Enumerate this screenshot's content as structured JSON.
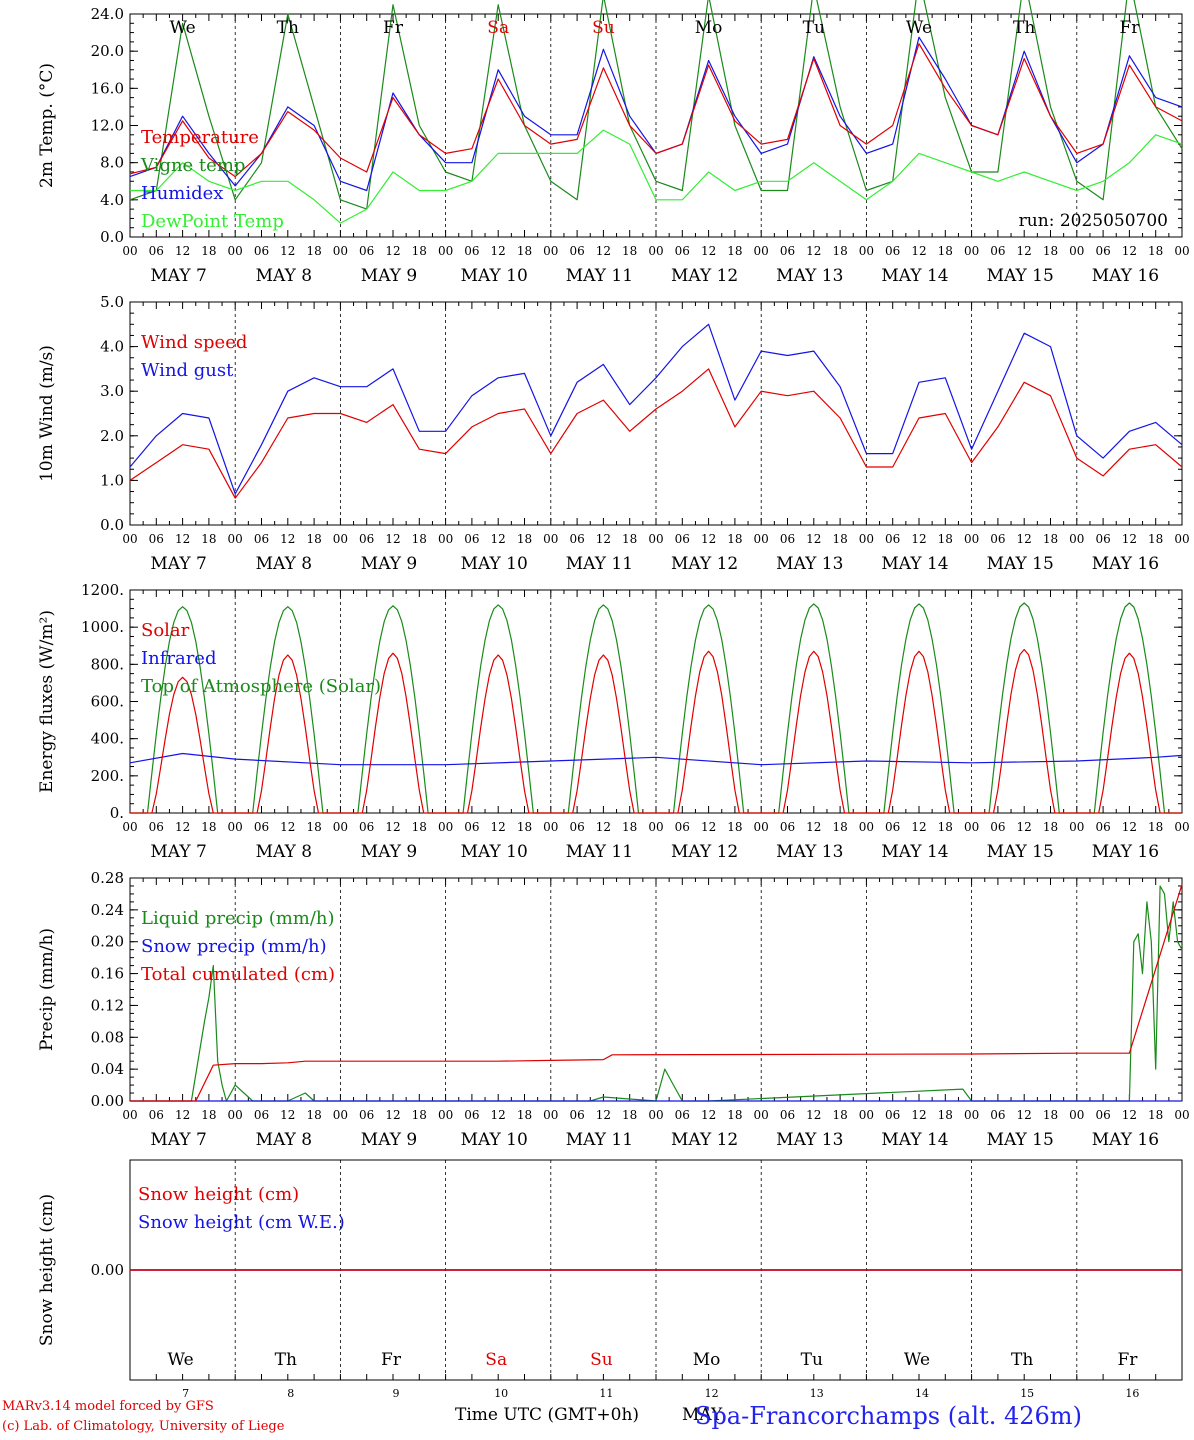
{
  "run_label": "run: 2025050700",
  "hour_ticks": [
    "00",
    "06",
    "12",
    "18"
  ],
  "end_tick": "00",
  "date_labels": [
    "MAY  7",
    "MAY  8",
    "MAY  9",
    "MAY 10",
    "MAY 11",
    "MAY 12",
    "MAY 13",
    "MAY 14",
    "MAY 15",
    "MAY 16"
  ],
  "weekdays": [
    {
      "label": "We",
      "color": "#000000"
    },
    {
      "label": "Th",
      "color": "#000000"
    },
    {
      "label": "Fr",
      "color": "#000000"
    },
    {
      "label": "Sa",
      "color": "#e00000"
    },
    {
      "label": "Su",
      "color": "#e00000"
    },
    {
      "label": "Mo",
      "color": "#000000"
    },
    {
      "label": "Tu",
      "color": "#000000"
    },
    {
      "label": "We",
      "color": "#000000"
    },
    {
      "label": "Th",
      "color": "#000000"
    },
    {
      "label": "Fr",
      "color": "#000000"
    }
  ],
  "day_numbers": [
    "7",
    "8",
    "9",
    "10",
    "11",
    "12",
    "13",
    "14",
    "15",
    "16"
  ],
  "footer": {
    "model_line": "MARv3.14 model forced by GFS",
    "lab_line": "(c) Lab. of Climatology, University of Liege",
    "xaxis_label": "Time UTC (GMT+0h)",
    "month_label": "MAY",
    "station_title": "Spa-Francorchamps (alt. 426m)"
  },
  "colors": {
    "red": "#e00000",
    "blue": "#1414e6",
    "green": "#1a8a1a",
    "lightgreen": "#33ee33"
  },
  "chart_data": [
    {
      "type": "line",
      "ylabel": "2m Temp. (°C)",
      "ylim": [
        0,
        24
      ],
      "yticks": [
        "0.0",
        "4.0",
        "8.0",
        "12.0",
        "16.0",
        "20.0",
        "24.0"
      ],
      "x_hours": [
        0,
        6,
        12,
        18,
        24,
        30,
        36,
        42,
        48,
        54,
        60,
        66,
        72,
        78,
        84,
        90,
        96,
        102,
        108,
        114,
        120,
        126,
        132,
        138,
        144,
        150,
        156,
        162,
        168,
        174,
        180,
        186,
        192,
        198,
        204,
        210,
        216,
        222,
        228,
        234,
        240
      ],
      "series": [
        {
          "name": "Temperature",
          "color": "red",
          "values": [
            6.8,
            7.5,
            12.5,
            8.5,
            6.5,
            9,
            13.5,
            11.5,
            8.5,
            7,
            15,
            11,
            9,
            9.5,
            17,
            12,
            10,
            10.5,
            18.2,
            12,
            9,
            10,
            18.5,
            12.5,
            10,
            10.5,
            19.2,
            12,
            10,
            12,
            20.8,
            16,
            12,
            11,
            19.2,
            13,
            9,
            10,
            18.5,
            14,
            12.5
          ]
        },
        {
          "name": "Vigne temp",
          "color": "green",
          "values": [
            4,
            5,
            23,
            13,
            4,
            8,
            24,
            14,
            4,
            3,
            25,
            12,
            7,
            6,
            25,
            12,
            6,
            4,
            26,
            12,
            6,
            5,
            26,
            12,
            5,
            5,
            27,
            14,
            5,
            6,
            28,
            15,
            7,
            7,
            28,
            14,
            6,
            4,
            28,
            14,
            9.5
          ]
        },
        {
          "name": "Humidex",
          "color": "blue",
          "values": [
            6.5,
            7.5,
            13,
            9,
            5.5,
            9,
            14,
            12,
            6,
            5,
            15.5,
            11,
            8,
            8,
            18,
            13,
            11,
            11,
            20.2,
            13,
            9,
            10,
            19,
            13,
            9,
            10,
            19.4,
            13,
            9,
            10,
            21.5,
            17,
            12,
            11,
            20,
            13,
            8,
            10,
            19.5,
            15,
            14
          ]
        },
        {
          "name": "DewPoint Temp",
          "color": "lightgreen",
          "values": [
            5,
            5,
            8,
            6,
            5,
            6,
            6,
            4,
            1.5,
            3,
            7,
            5,
            5,
            6,
            9,
            9,
            9,
            9,
            11.5,
            10,
            4,
            4,
            7,
            5,
            6,
            6,
            8,
            6,
            4,
            6,
            9,
            8,
            7,
            6,
            7,
            6,
            5,
            6,
            8,
            11,
            10
          ]
        }
      ]
    },
    {
      "type": "line",
      "ylabel": "10m Wind (m/s)",
      "ylim": [
        0,
        5
      ],
      "yticks": [
        "0.0",
        "1.0",
        "2.0",
        "3.0",
        "4.0",
        "5.0"
      ],
      "x_hours": [
        0,
        6,
        12,
        18,
        24,
        30,
        36,
        42,
        48,
        54,
        60,
        66,
        72,
        78,
        84,
        90,
        96,
        102,
        108,
        114,
        120,
        126,
        132,
        138,
        144,
        150,
        156,
        162,
        168,
        174,
        180,
        186,
        192,
        198,
        204,
        210,
        216,
        222,
        228,
        234,
        240
      ],
      "series": [
        {
          "name": "Wind speed",
          "color": "red",
          "values": [
            1,
            1.4,
            1.8,
            1.7,
            0.6,
            1.4,
            2.4,
            2.5,
            2.5,
            2.3,
            2.7,
            1.7,
            1.6,
            2.2,
            2.5,
            2.6,
            1.6,
            2.5,
            2.8,
            2.1,
            2.6,
            3,
            3.5,
            2.2,
            3,
            2.9,
            3,
            2.4,
            1.3,
            1.3,
            2.4,
            2.5,
            1.4,
            2.2,
            3.2,
            2.9,
            1.5,
            1.1,
            1.7,
            1.8,
            1.3
          ]
        },
        {
          "name": "Wind gust",
          "color": "blue",
          "values": [
            1.3,
            2,
            2.5,
            2.4,
            0.7,
            1.8,
            3,
            3.3,
            3.1,
            3.1,
            3.5,
            2.1,
            2.1,
            2.9,
            3.3,
            3.4,
            2,
            3.2,
            3.6,
            2.7,
            3.3,
            4,
            4.5,
            2.8,
            3.9,
            3.8,
            3.9,
            3.1,
            1.6,
            1.6,
            3.2,
            3.3,
            1.7,
            3,
            4.3,
            4,
            2,
            1.5,
            2.1,
            2.3,
            1.8
          ]
        }
      ]
    },
    {
      "type": "line",
      "ylabel": "Energy fluxes (W/m²)",
      "ylim": [
        0,
        1200
      ],
      "yticks": [
        "0.",
        "200.",
        "400.",
        "600.",
        "800.",
        "1000.",
        "1200."
      ],
      "day_peaks": {
        "solar": [
          730,
          850,
          860,
          850,
          850,
          870,
          870,
          870,
          880,
          860
        ],
        "toa": [
          1110,
          1110,
          1115,
          1120,
          1120,
          1120,
          1125,
          1125,
          1130,
          1130
        ]
      },
      "series": [
        {
          "name": "Solar",
          "color": "red"
        },
        {
          "name": "Infrared",
          "color": "blue",
          "x_hours": [
            0,
            12,
            24,
            48,
            72,
            96,
            120,
            144,
            168,
            192,
            216,
            234,
            240
          ],
          "values": [
            270,
            320,
            290,
            260,
            260,
            280,
            300,
            260,
            280,
            270,
            280,
            300,
            310
          ]
        },
        {
          "name": "Top of Atmosphere (Solar)",
          "color": "green"
        }
      ]
    },
    {
      "type": "line",
      "ylabel": "Precip (mm/h)",
      "ylim": [
        0,
        0.28
      ],
      "yticks": [
        "0.00",
        "0.04",
        "0.08",
        "0.12",
        "0.16",
        "0.20",
        "0.24",
        "0.28"
      ],
      "series": [
        {
          "name": "Liquid precip (mm/h)",
          "color": "green",
          "x_hours": [
            0,
            14,
            17,
            18,
            19,
            20,
            21,
            22,
            24,
            28,
            36,
            40,
            42,
            96,
            105,
            108,
            120,
            122,
            124,
            126,
            132,
            190,
            192,
            216,
            228,
            229,
            230,
            231,
            232,
            233,
            234,
            235,
            236,
            237,
            238,
            239,
            240
          ],
          "values": [
            0,
            0,
            0.1,
            0.13,
            0.17,
            0.05,
            0.02,
            0,
            0.02,
            0,
            0,
            0.01,
            0,
            0,
            0,
            0.005,
            0,
            0.04,
            0.02,
            0,
            0,
            0.015,
            0,
            0,
            0,
            0.2,
            0.21,
            0.16,
            0.25,
            0.2,
            0.04,
            0.27,
            0.26,
            0.2,
            0.25,
            0.2,
            0.19
          ]
        },
        {
          "name": "Snow precip (mm/h)",
          "color": "blue",
          "x_hours": [
            0,
            240
          ],
          "values": [
            0,
            0
          ]
        },
        {
          "name": "Total cumulated (cm)",
          "color": "red",
          "x_hours": [
            0,
            15,
            19,
            24,
            30,
            36,
            40,
            84,
            96,
            108,
            110,
            192,
            216,
            228,
            240
          ],
          "values": [
            0,
            0,
            0.045,
            0.047,
            0.047,
            0.048,
            0.05,
            0.05,
            0.051,
            0.052,
            0.058,
            0.059,
            0.06,
            0.06,
            0.272
          ]
        }
      ]
    },
    {
      "type": "line",
      "ylabel": "Snow height (cm)",
      "yticks": [
        "0.00"
      ],
      "series": [
        {
          "name": "Snow height (cm)",
          "color": "red",
          "values": [
            0,
            0
          ]
        },
        {
          "name": "Snow height (cm W.E.)",
          "color": "blue",
          "values": [
            0,
            0
          ]
        }
      ]
    }
  ]
}
